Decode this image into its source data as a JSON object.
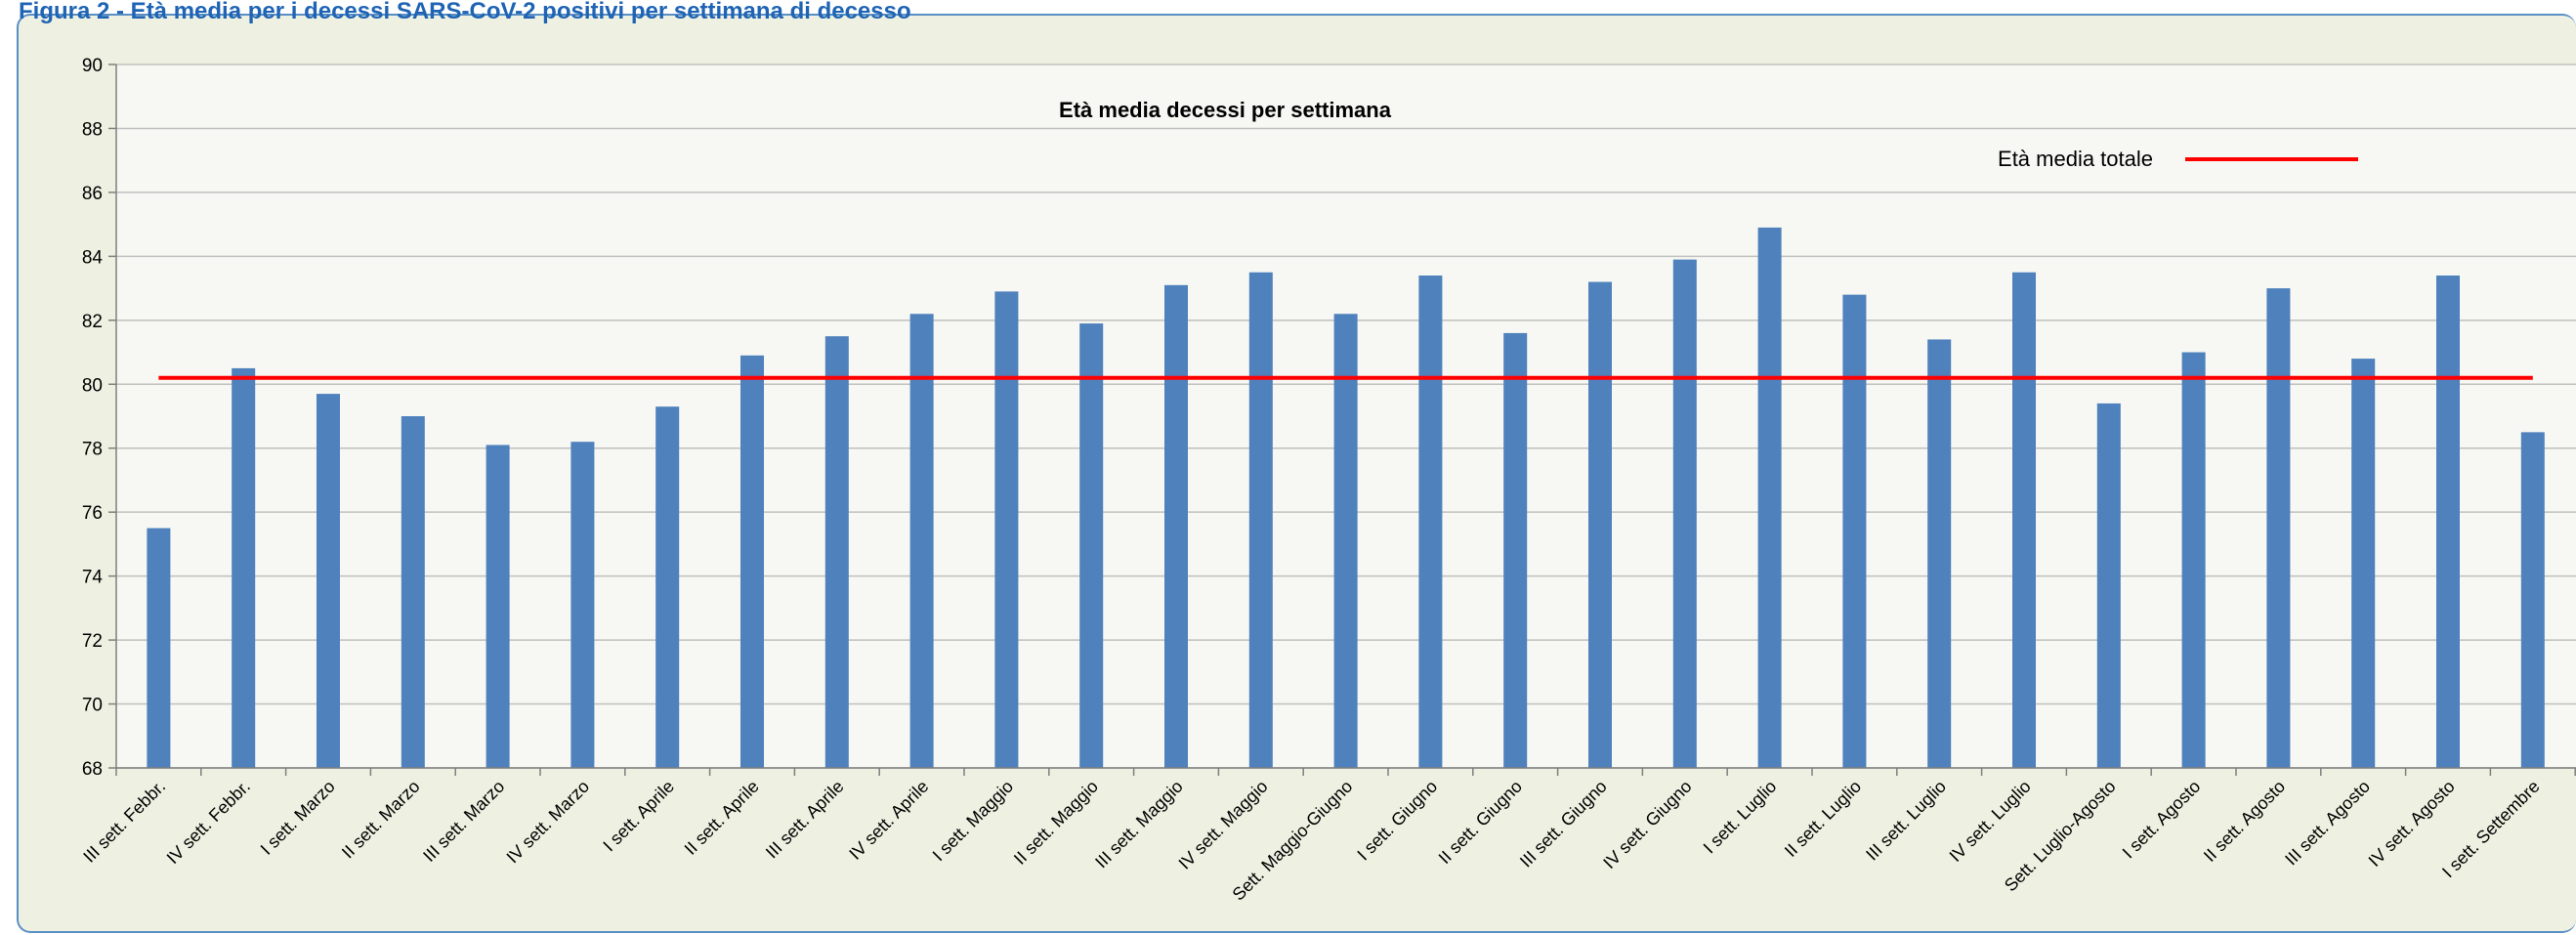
{
  "page": {
    "caption": "Figura 2 - Età media per i decessi SARS-CoV-2 positivi per settimana di decesso"
  },
  "colors": {
    "bar": "#4f81bd",
    "reference_line": "#ff0000",
    "frame_border": "#5a8fc4",
    "frame_background": "#eef1e2",
    "plot_background": "#f7f8f3",
    "gridline": "#c0c0c0",
    "caption": "#1f64b4"
  },
  "chart_data": {
    "type": "bar",
    "title": "Età media decessi per settimana",
    "xlabel": "",
    "ylabel": "",
    "ylim": [
      68,
      90
    ],
    "yticks": [
      68,
      70,
      72,
      74,
      76,
      78,
      80,
      82,
      84,
      86,
      88,
      90
    ],
    "grid": true,
    "legend_position": "top-right",
    "categories": [
      "III sett. Febbr.",
      "IV sett. Febbr.",
      "I sett. Marzo",
      "II sett. Marzo",
      "III sett. Marzo",
      "IV sett. Marzo",
      "I sett. Aprile",
      "II sett. Aprile",
      "III sett. Aprile",
      "IV sett. Aprile",
      "I sett. Maggio",
      "II sett. Maggio",
      "III sett. Maggio",
      "IV sett. Maggio",
      "Sett. Maggio-Giugno",
      "I sett. Giugno",
      "II sett. Giugno",
      "III sett. Giugno",
      "IV sett. Giugno",
      "I sett. Luglio",
      "II sett. Luglio",
      "III sett. Luglio",
      "IV sett. Luglio",
      "Sett. Luglio-Agosto",
      "I sett. Agosto",
      "II sett. Agosto",
      "III sett. Agosto",
      "IV sett. Agosto",
      "I sett. Settembre"
    ],
    "series": [
      {
        "values": [
          75.5,
          80.5,
          79.7,
          79.0,
          78.1,
          78.2,
          79.3,
          80.9,
          81.5,
          82.2,
          82.9,
          81.9,
          83.1,
          83.5,
          82.2,
          83.4,
          81.6,
          83.2,
          83.9,
          84.9,
          82.8,
          81.4,
          83.5,
          79.4,
          81.0,
          83.0,
          80.8,
          83.4,
          78.5
        ]
      }
    ],
    "reference_line": {
      "name": "Età media totale",
      "value": 80.2
    }
  }
}
